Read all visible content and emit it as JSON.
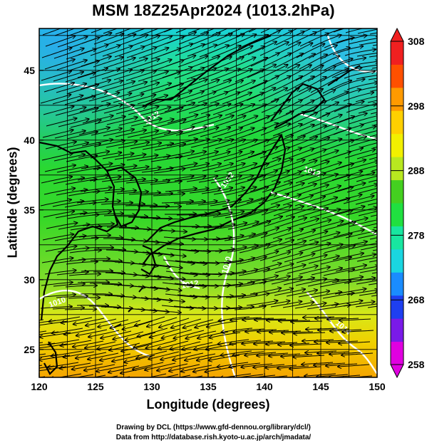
{
  "title": "MSM 18Z25Apr2024 (1013.2hPa)",
  "axes": {
    "xlabel": "Longitude (degrees)",
    "ylabel": "Latitude  (degrees)",
    "x_ticks": [
      "120",
      "125",
      "130",
      "135",
      "140",
      "145",
      "150"
    ],
    "y_ticks": [
      "25",
      "30",
      "35",
      "40",
      "45"
    ],
    "x_range": [
      120,
      150
    ],
    "y_range": [
      23,
      48
    ]
  },
  "colorbar": {
    "ticks": [
      "258",
      "268",
      "278",
      "288",
      "298",
      "308"
    ],
    "range": [
      258,
      308
    ],
    "colors": [
      "#e000e0",
      "#7a1ae8",
      "#1e3ff0",
      "#1a8cff",
      "#1ad6e0",
      "#18e6a0",
      "#20e040",
      "#44d020",
      "#b8e820",
      "#f2f000",
      "#ffd000",
      "#ff9a00",
      "#ff5000",
      "#f02020"
    ]
  },
  "contour_labels": [
    "1012",
    "1012",
    "1012",
    "1010",
    "1010",
    "1012",
    "1014"
  ],
  "credits": {
    "line1": "Drawing by DCL (https://www.gfd-dennou.org/library/dcl/)",
    "line2": "Data from http://database.rish.kyoto-u.ac.jp/arch/jmadata/"
  }
}
